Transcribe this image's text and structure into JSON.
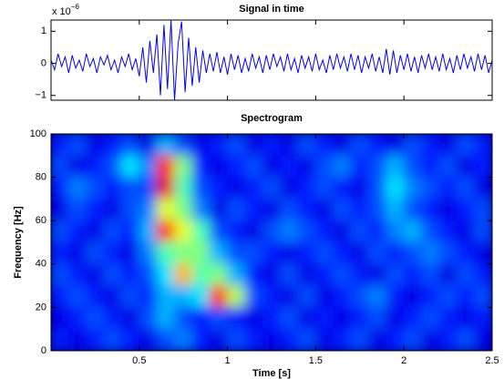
{
  "chart_data": [
    {
      "type": "line",
      "title": "Signal in time",
      "y_multiplier": {
        "base": "x 10",
        "exponent": "−6"
      },
      "color": "#0000ff",
      "xlim": [
        0,
        2.5
      ],
      "xticks": [
        0.5,
        1,
        1.5,
        2,
        2.5
      ],
      "ylim": [
        -1.15,
        1.35
      ],
      "yticks": [
        {
          "value": -1,
          "label": "−1"
        },
        0,
        1
      ],
      "x": [
        0,
        0.02,
        0.04,
        0.06,
        0.08,
        0.1,
        0.12,
        0.14,
        0.16,
        0.18,
        0.2,
        0.22,
        0.24,
        0.26,
        0.28,
        0.3,
        0.32,
        0.34,
        0.36,
        0.38,
        0.4,
        0.42,
        0.44,
        0.46,
        0.48,
        0.5,
        0.52,
        0.54,
        0.56,
        0.58,
        0.6,
        0.62,
        0.64,
        0.66,
        0.68,
        0.7,
        0.72,
        0.74,
        0.76,
        0.78,
        0.8,
        0.82,
        0.84,
        0.86,
        0.88,
        0.9,
        0.92,
        0.94,
        0.96,
        0.98,
        1,
        1.02,
        1.04,
        1.06,
        1.08,
        1.1,
        1.12,
        1.14,
        1.16,
        1.18,
        1.2,
        1.22,
        1.24,
        1.26,
        1.28,
        1.3,
        1.32,
        1.34,
        1.36,
        1.38,
        1.4,
        1.42,
        1.44,
        1.46,
        1.48,
        1.5,
        1.52,
        1.54,
        1.56,
        1.58,
        1.6,
        1.62,
        1.64,
        1.66,
        1.68,
        1.7,
        1.72,
        1.74,
        1.76,
        1.78,
        1.8,
        1.82,
        1.84,
        1.86,
        1.88,
        1.9,
        1.92,
        1.94,
        1.96,
        1.98,
        2,
        2.02,
        2.04,
        2.06,
        2.08,
        2.1,
        2.12,
        2.14,
        2.16,
        2.18,
        2.2,
        2.22,
        2.24,
        2.26,
        2.28,
        2.3,
        2.32,
        2.34,
        2.36,
        2.38,
        2.4,
        2.42,
        2.44,
        2.46,
        2.48,
        2.5
      ],
      "values": [
        0.1,
        -0.2,
        0.3,
        -0.1,
        0.2,
        -0.3,
        0.25,
        -0.15,
        0.1,
        -0.25,
        0.3,
        -0.1,
        0.15,
        -0.3,
        0.2,
        -0.05,
        0.25,
        -0.2,
        0.1,
        -0.3,
        0.2,
        -0.1,
        0.3,
        -0.2,
        0.15,
        -0.4,
        0.5,
        -0.6,
        0.7,
        -0.3,
        0.9,
        -1.0,
        1.2,
        -0.8,
        1.35,
        -1.15,
        0.6,
        1.3,
        -0.9,
        0.8,
        -0.7,
        0.5,
        -0.6,
        0.4,
        -0.3,
        0.3,
        -0.25,
        0.35,
        -0.3,
        0.2,
        -0.35,
        0.3,
        -0.2,
        0.25,
        -0.3,
        0.15,
        -0.25,
        0.3,
        -0.15,
        0.2,
        -0.3,
        0.25,
        -0.2,
        0.3,
        -0.1,
        0.2,
        -0.25,
        0.3,
        -0.2,
        0.15,
        -0.3,
        0.25,
        -0.15,
        0.2,
        -0.25,
        0.3,
        -0.2,
        0.1,
        -0.3,
        0.25,
        -0.2,
        0.3,
        -0.15,
        0.2,
        -0.25,
        0.3,
        -0.2,
        0.25,
        -0.3,
        0.2,
        -0.15,
        0.3,
        -0.25,
        0.2,
        -0.3,
        0.45,
        -0.35,
        0.4,
        -0.3,
        0.25,
        -0.2,
        0.3,
        -0.25,
        0.2,
        -0.3,
        0.25,
        -0.15,
        0.3,
        -0.2,
        0.2,
        -0.25,
        0.3,
        -0.2,
        0.15,
        -0.3,
        0.25,
        -0.2,
        0.3,
        -0.15,
        0.2,
        -0.25,
        0.3,
        -0.2,
        0.25,
        -0.3,
        0.1
      ]
    },
    {
      "type": "heatmap",
      "title": "Spectrogram",
      "xlabel": "Time [s]",
      "ylabel": "Frequency [Hz]",
      "colormap": "jet",
      "zlim": [
        0,
        1
      ],
      "xlim": [
        0,
        2.5
      ],
      "xticks": [
        0.5,
        1,
        1.5,
        2,
        2.5
      ],
      "ylim": [
        0,
        100
      ],
      "yticks": [
        0,
        20,
        40,
        60,
        80,
        100
      ],
      "x": [
        0.05,
        0.15,
        0.25,
        0.35,
        0.45,
        0.55,
        0.65,
        0.75,
        0.85,
        0.95,
        1.05,
        1.15,
        1.25,
        1.35,
        1.45,
        1.55,
        1.65,
        1.75,
        1.85,
        1.95,
        2.05,
        2.15,
        2.25,
        2.35,
        2.45
      ],
      "y": [
        95,
        85,
        75,
        65,
        55,
        45,
        35,
        25,
        15,
        5
      ],
      "z": [
        [
          0.15,
          0.2,
          0.1,
          0.15,
          0.2,
          0.1,
          0.3,
          0.2,
          0.1,
          0.15,
          0.2,
          0.1,
          0.15,
          0.1,
          0.2,
          0.15,
          0.1,
          0.2,
          0.15,
          0.1,
          0.2,
          0.15,
          0.1,
          0.2,
          0.15
        ],
        [
          0.2,
          0.1,
          0.15,
          0.2,
          0.35,
          0.25,
          0.85,
          0.5,
          0.15,
          0.1,
          0.15,
          0.2,
          0.1,
          0.15,
          0.1,
          0.2,
          0.25,
          0.15,
          0.2,
          0.3,
          0.2,
          0.15,
          0.2,
          0.1,
          0.15
        ],
        [
          0.15,
          0.25,
          0.2,
          0.15,
          0.2,
          0.2,
          0.9,
          0.45,
          0.2,
          0.15,
          0.1,
          0.15,
          0.2,
          0.1,
          0.15,
          0.2,
          0.15,
          0.1,
          0.2,
          0.35,
          0.25,
          0.2,
          0.15,
          0.2,
          0.1
        ],
        [
          0.1,
          0.2,
          0.15,
          0.1,
          0.2,
          0.25,
          0.6,
          0.5,
          0.25,
          0.1,
          0.2,
          0.15,
          0.1,
          0.2,
          0.15,
          0.1,
          0.2,
          0.15,
          0.2,
          0.3,
          0.2,
          0.15,
          0.1,
          0.15,
          0.2
        ],
        [
          0.2,
          0.15,
          0.1,
          0.2,
          0.15,
          0.3,
          0.85,
          0.6,
          0.45,
          0.2,
          0.15,
          0.1,
          0.2,
          0.25,
          0.2,
          0.15,
          0.1,
          0.2,
          0.15,
          0.25,
          0.3,
          0.2,
          0.15,
          0.1,
          0.2
        ],
        [
          0.15,
          0.1,
          0.2,
          0.15,
          0.1,
          0.25,
          0.45,
          0.5,
          0.5,
          0.3,
          0.2,
          0.2,
          0.15,
          0.1,
          0.15,
          0.2,
          0.15,
          0.1,
          0.2,
          0.15,
          0.2,
          0.25,
          0.2,
          0.15,
          0.1
        ],
        [
          0.2,
          0.15,
          0.1,
          0.2,
          0.15,
          0.2,
          0.35,
          0.7,
          0.45,
          0.5,
          0.3,
          0.15,
          0.1,
          0.2,
          0.1,
          0.15,
          0.2,
          0.15,
          0.1,
          0.2,
          0.15,
          0.2,
          0.1,
          0.2,
          0.15
        ],
        [
          0.15,
          0.2,
          0.15,
          0.1,
          0.2,
          0.15,
          0.3,
          0.3,
          0.35,
          0.85,
          0.55,
          0.2,
          0.15,
          0.1,
          0.2,
          0.1,
          0.15,
          0.2,
          0.25,
          0.15,
          0.1,
          0.15,
          0.2,
          0.15,
          0.2
        ],
        [
          0.1,
          0.15,
          0.2,
          0.15,
          0.1,
          0.2,
          0.3,
          0.2,
          0.15,
          0.2,
          0.15,
          0.1,
          0.15,
          0.2,
          0.1,
          0.15,
          0.1,
          0.15,
          0.2,
          0.1,
          0.15,
          0.2,
          0.15,
          0.1,
          0.15
        ],
        [
          0.15,
          0.1,
          0.15,
          0.2,
          0.15,
          0.1,
          0.2,
          0.25,
          0.15,
          0.1,
          0.2,
          0.15,
          0.1,
          0.15,
          0.2,
          0.1,
          0.15,
          0.2,
          0.1,
          0.15,
          0.2,
          0.1,
          0.15,
          0.2,
          0.1
        ]
      ]
    }
  ]
}
